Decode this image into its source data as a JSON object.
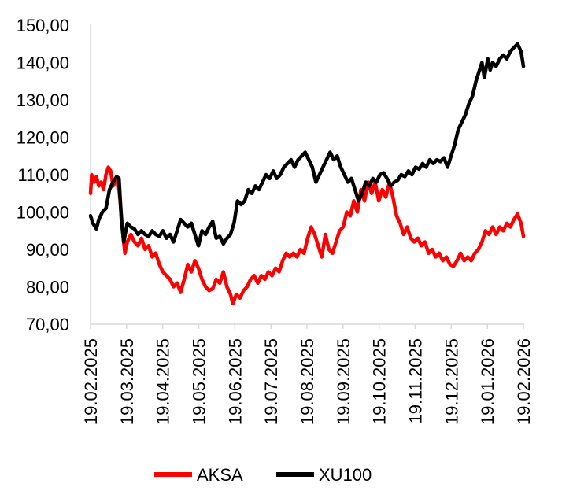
{
  "chart_data": {
    "type": "line",
    "title": "",
    "xlabel": "",
    "ylabel": "",
    "ylim": [
      70,
      150
    ],
    "y_ticks": [
      "70,00",
      "80,00",
      "90,00",
      "100,00",
      "110,00",
      "120,00",
      "130,00",
      "140,00",
      "150,00"
    ],
    "x_ticks": [
      "19.02.2025",
      "19.03.2025",
      "19.04.2025",
      "19.05.2025",
      "19.06.2025",
      "19.07.2025",
      "19.08.2025",
      "19.09.2025",
      "19.10.2025",
      "19.11.2025",
      "19.12.2025",
      "19.01.2026",
      "19.02.2026"
    ],
    "x_range": [
      "2025-02-19",
      "2026-02-19"
    ],
    "grid": false,
    "legend_position": "bottom",
    "series": [
      {
        "name": "AKSA",
        "color": "#ff0000",
        "points": [
          [
            "2025-02-19",
            105
          ],
          [
            "2025-02-20",
            110
          ],
          [
            "2025-02-22",
            108
          ],
          [
            "2025-02-24",
            109.5
          ],
          [
            "2025-02-26",
            107
          ],
          [
            "2025-02-28",
            108
          ],
          [
            "2025-03-02",
            106
          ],
          [
            "2025-03-04",
            110
          ],
          [
            "2025-03-06",
            112
          ],
          [
            "2025-03-08",
            111
          ],
          [
            "2025-03-10",
            107
          ],
          [
            "2025-03-12",
            108
          ],
          [
            "2025-03-14",
            109
          ],
          [
            "2025-03-16",
            103
          ],
          [
            "2025-03-18",
            95
          ],
          [
            "2025-03-20",
            89
          ],
          [
            "2025-03-22",
            92
          ],
          [
            "2025-03-25",
            94
          ],
          [
            "2025-03-28",
            92
          ],
          [
            "2025-03-31",
            91
          ],
          [
            "2025-04-03",
            93
          ],
          [
            "2025-04-06",
            90
          ],
          [
            "2025-04-09",
            91
          ],
          [
            "2025-04-12",
            88
          ],
          [
            "2025-04-15",
            89
          ],
          [
            "2025-04-18",
            86
          ],
          [
            "2025-04-21",
            84
          ],
          [
            "2025-04-24",
            83
          ],
          [
            "2025-04-27",
            82
          ],
          [
            "2025-04-30",
            80
          ],
          [
            "2025-05-03",
            81
          ],
          [
            "2025-05-06",
            78.5
          ],
          [
            "2025-05-09",
            82
          ],
          [
            "2025-05-12",
            86
          ],
          [
            "2025-05-15",
            84
          ],
          [
            "2025-05-18",
            87
          ],
          [
            "2025-05-21",
            85
          ],
          [
            "2025-05-24",
            82
          ],
          [
            "2025-05-27",
            80
          ],
          [
            "2025-05-30",
            79
          ],
          [
            "2025-06-02",
            79.5
          ],
          [
            "2025-06-05",
            82
          ],
          [
            "2025-06-08",
            81
          ],
          [
            "2025-06-11",
            84
          ],
          [
            "2025-06-14",
            80
          ],
          [
            "2025-06-17",
            78
          ],
          [
            "2025-06-19",
            75.5
          ],
          [
            "2025-06-22",
            78
          ],
          [
            "2025-06-25",
            77
          ],
          [
            "2025-06-28",
            79
          ],
          [
            "2025-07-01",
            80
          ],
          [
            "2025-07-04",
            82
          ],
          [
            "2025-07-07",
            83
          ],
          [
            "2025-07-10",
            81
          ],
          [
            "2025-07-13",
            83
          ],
          [
            "2025-07-16",
            82
          ],
          [
            "2025-07-19",
            84
          ],
          [
            "2025-07-22",
            83
          ],
          [
            "2025-07-25",
            85
          ],
          [
            "2025-07-28",
            84
          ],
          [
            "2025-07-31",
            87
          ],
          [
            "2025-08-03",
            89
          ],
          [
            "2025-08-06",
            88
          ],
          [
            "2025-08-09",
            89
          ],
          [
            "2025-08-12",
            88
          ],
          [
            "2025-08-15",
            90
          ],
          [
            "2025-08-18",
            89
          ],
          [
            "2025-08-21",
            93
          ],
          [
            "2025-08-24",
            96
          ],
          [
            "2025-08-27",
            94
          ],
          [
            "2025-08-30",
            91
          ],
          [
            "2025-09-02",
            88
          ],
          [
            "2025-09-05",
            94
          ],
          [
            "2025-09-08",
            90
          ],
          [
            "2025-09-11",
            89
          ],
          [
            "2025-09-14",
            92
          ],
          [
            "2025-09-17",
            95
          ],
          [
            "2025-09-20",
            96
          ],
          [
            "2025-09-23",
            100
          ],
          [
            "2025-09-26",
            99
          ],
          [
            "2025-09-29",
            103
          ],
          [
            "2025-10-02",
            100
          ],
          [
            "2025-10-05",
            106
          ],
          [
            "2025-10-08",
            103
          ],
          [
            "2025-10-11",
            108
          ],
          [
            "2025-10-14",
            105
          ],
          [
            "2025-10-17",
            108
          ],
          [
            "2025-10-20",
            103
          ],
          [
            "2025-10-23",
            106
          ],
          [
            "2025-10-26",
            104
          ],
          [
            "2025-10-29",
            108
          ],
          [
            "2025-11-01",
            104
          ],
          [
            "2025-11-04",
            99
          ],
          [
            "2025-11-07",
            97
          ],
          [
            "2025-11-10",
            94
          ],
          [
            "2025-11-13",
            96
          ],
          [
            "2025-11-16",
            93
          ],
          [
            "2025-11-19",
            92
          ],
          [
            "2025-11-22",
            93
          ],
          [
            "2025-11-25",
            91
          ],
          [
            "2025-11-28",
            92
          ],
          [
            "2025-12-01",
            89
          ],
          [
            "2025-12-04",
            90
          ],
          [
            "2025-12-07",
            88
          ],
          [
            "2025-12-10",
            89
          ],
          [
            "2025-12-13",
            87
          ],
          [
            "2025-12-16",
            88
          ],
          [
            "2025-12-19",
            86
          ],
          [
            "2025-12-22",
            85.5
          ],
          [
            "2025-12-25",
            87
          ],
          [
            "2025-12-28",
            89
          ],
          [
            "2025-12-31",
            87
          ],
          [
            "2026-01-03",
            88
          ],
          [
            "2026-01-06",
            87
          ],
          [
            "2026-01-09",
            89
          ],
          [
            "2026-01-12",
            90
          ],
          [
            "2026-01-15",
            92
          ],
          [
            "2026-01-18",
            95
          ],
          [
            "2026-01-21",
            94
          ],
          [
            "2026-01-24",
            96
          ],
          [
            "2026-01-27",
            94
          ],
          [
            "2026-01-30",
            96
          ],
          [
            "2026-02-02",
            95
          ],
          [
            "2026-02-05",
            97
          ],
          [
            "2026-02-08",
            96
          ],
          [
            "2026-02-11",
            98
          ],
          [
            "2026-02-14",
            99.5
          ],
          [
            "2026-02-17",
            97
          ],
          [
            "2026-02-19",
            93.5
          ]
        ]
      },
      {
        "name": "XU100",
        "color": "#000000",
        "points": [
          [
            "2025-02-19",
            99
          ],
          [
            "2025-02-21",
            97
          ],
          [
            "2025-02-24",
            95.5
          ],
          [
            "2025-02-26",
            98
          ],
          [
            "2025-03-01",
            100
          ],
          [
            "2025-03-04",
            101
          ],
          [
            "2025-03-07",
            106
          ],
          [
            "2025-03-10",
            108
          ],
          [
            "2025-03-13",
            109.5
          ],
          [
            "2025-03-15",
            109
          ],
          [
            "2025-03-17",
            98
          ],
          [
            "2025-03-19",
            92
          ],
          [
            "2025-03-22",
            97
          ],
          [
            "2025-03-25",
            96
          ],
          [
            "2025-03-28",
            95.5
          ],
          [
            "2025-03-31",
            94
          ],
          [
            "2025-04-03",
            95
          ],
          [
            "2025-04-06",
            94
          ],
          [
            "2025-04-09",
            93.5
          ],
          [
            "2025-04-12",
            95
          ],
          [
            "2025-04-15",
            94
          ],
          [
            "2025-04-18",
            93.5
          ],
          [
            "2025-04-21",
            95
          ],
          [
            "2025-04-24",
            93
          ],
          [
            "2025-04-27",
            94
          ],
          [
            "2025-04-30",
            92
          ],
          [
            "2025-05-03",
            95
          ],
          [
            "2025-05-06",
            98
          ],
          [
            "2025-05-09",
            97
          ],
          [
            "2025-05-12",
            96
          ],
          [
            "2025-05-15",
            97
          ],
          [
            "2025-05-18",
            94
          ],
          [
            "2025-05-21",
            91
          ],
          [
            "2025-05-24",
            95
          ],
          [
            "2025-05-27",
            94
          ],
          [
            "2025-05-30",
            96
          ],
          [
            "2025-06-02",
            97.5
          ],
          [
            "2025-06-05",
            93
          ],
          [
            "2025-06-08",
            93.5
          ],
          [
            "2025-06-11",
            91.5
          ],
          [
            "2025-06-14",
            93
          ],
          [
            "2025-06-17",
            94
          ],
          [
            "2025-06-20",
            97
          ],
          [
            "2025-06-23",
            103
          ],
          [
            "2025-06-26",
            102
          ],
          [
            "2025-06-29",
            103
          ],
          [
            "2025-07-02",
            106
          ],
          [
            "2025-07-05",
            105
          ],
          [
            "2025-07-08",
            107
          ],
          [
            "2025-07-11",
            106
          ],
          [
            "2025-07-14",
            108
          ],
          [
            "2025-07-17",
            110
          ],
          [
            "2025-07-20",
            109
          ],
          [
            "2025-07-23",
            111
          ],
          [
            "2025-07-26",
            109
          ],
          [
            "2025-07-29",
            110
          ],
          [
            "2025-08-01",
            112
          ],
          [
            "2025-08-04",
            113
          ],
          [
            "2025-08-07",
            114
          ],
          [
            "2025-08-10",
            112
          ],
          [
            "2025-08-13",
            114
          ],
          [
            "2025-08-16",
            115
          ],
          [
            "2025-08-19",
            116
          ],
          [
            "2025-08-22",
            114
          ],
          [
            "2025-08-25",
            112
          ],
          [
            "2025-08-28",
            108
          ],
          [
            "2025-08-31",
            110
          ],
          [
            "2025-09-03",
            112
          ],
          [
            "2025-09-06",
            114
          ],
          [
            "2025-09-09",
            116
          ],
          [
            "2025-09-12",
            114
          ],
          [
            "2025-09-15",
            115
          ],
          [
            "2025-09-18",
            112
          ],
          [
            "2025-09-21",
            110
          ],
          [
            "2025-09-24",
            108
          ],
          [
            "2025-09-27",
            109
          ],
          [
            "2025-09-30",
            106
          ],
          [
            "2025-10-03",
            103
          ],
          [
            "2025-10-06",
            105
          ],
          [
            "2025-10-09",
            108
          ],
          [
            "2025-10-12",
            107
          ],
          [
            "2025-10-15",
            109
          ],
          [
            "2025-10-18",
            108
          ],
          [
            "2025-10-21",
            110
          ],
          [
            "2025-10-24",
            110.5
          ],
          [
            "2025-10-27",
            109
          ],
          [
            "2025-10-30",
            107
          ],
          [
            "2025-11-02",
            108
          ],
          [
            "2025-11-05",
            108.5
          ],
          [
            "2025-11-08",
            110
          ],
          [
            "2025-11-11",
            109.5
          ],
          [
            "2025-11-14",
            111
          ],
          [
            "2025-11-17",
            110
          ],
          [
            "2025-11-20",
            112
          ],
          [
            "2025-11-23",
            111.5
          ],
          [
            "2025-11-26",
            113
          ],
          [
            "2025-11-29",
            112
          ],
          [
            "2025-12-02",
            114
          ],
          [
            "2025-12-05",
            113
          ],
          [
            "2025-12-08",
            114
          ],
          [
            "2025-12-11",
            113.5
          ],
          [
            "2025-12-14",
            114.5
          ],
          [
            "2025-12-17",
            112
          ],
          [
            "2025-12-20",
            115
          ],
          [
            "2025-12-23",
            118
          ],
          [
            "2025-12-26",
            122
          ],
          [
            "2025-12-29",
            124
          ],
          [
            "2026-01-01",
            126
          ],
          [
            "2026-01-04",
            129
          ],
          [
            "2026-01-07",
            131
          ],
          [
            "2026-01-10",
            135
          ],
          [
            "2026-01-13",
            138
          ],
          [
            "2026-01-15",
            140
          ],
          [
            "2026-01-17",
            136
          ],
          [
            "2026-01-20",
            141
          ],
          [
            "2026-01-22",
            138
          ],
          [
            "2026-01-24",
            140
          ],
          [
            "2026-01-27",
            139
          ],
          [
            "2026-01-30",
            141
          ],
          [
            "2026-02-02",
            142
          ],
          [
            "2026-02-05",
            141
          ],
          [
            "2026-02-08",
            143
          ],
          [
            "2026-02-11",
            144
          ],
          [
            "2026-02-14",
            145
          ],
          [
            "2026-02-17",
            143
          ],
          [
            "2026-02-19",
            139
          ]
        ]
      }
    ]
  }
}
